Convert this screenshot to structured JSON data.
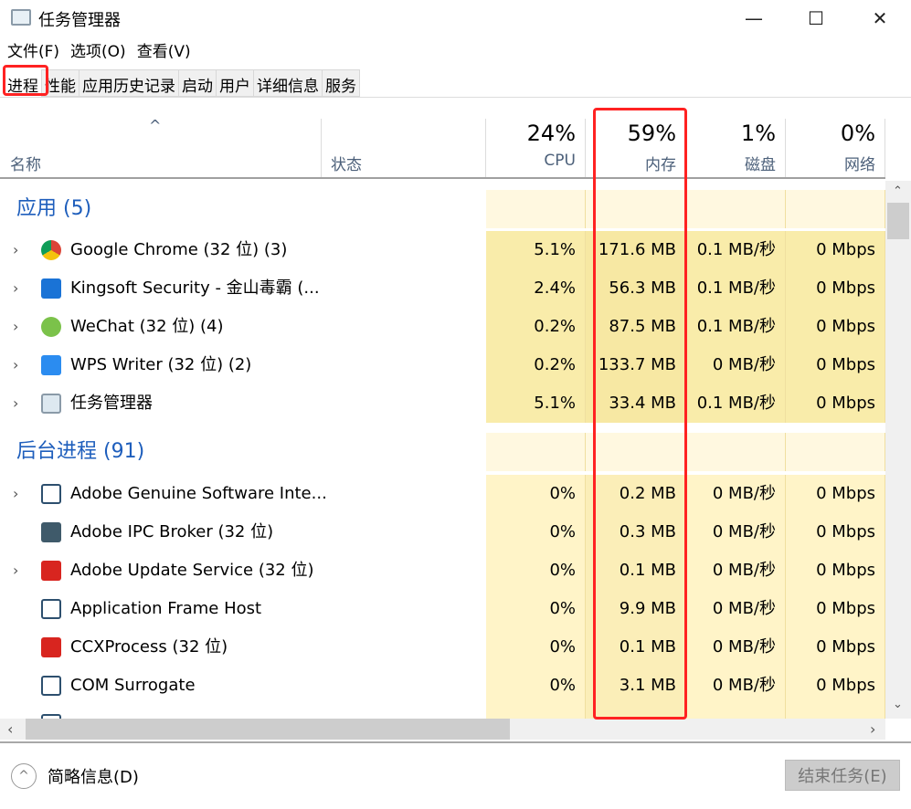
{
  "window": {
    "title": "任务管理器",
    "minimize": "—",
    "maximize": "☐",
    "close": "✕"
  },
  "menu": [
    "文件(F)",
    "选项(O)",
    "查看(V)"
  ],
  "tabs": [
    "进程",
    "性能",
    "应用历史记录",
    "启动",
    "用户",
    "详细信息",
    "服务"
  ],
  "header": {
    "name": "名称",
    "status": "状态",
    "sort": "^",
    "cpu": {
      "pct": "24%",
      "label": "CPU"
    },
    "mem": {
      "pct": "59%",
      "label": "内存"
    },
    "disk": {
      "pct": "1%",
      "label": "磁盘"
    },
    "net": {
      "pct": "0%",
      "label": "网络"
    }
  },
  "groups": {
    "apps": "应用 (5)",
    "background": "后台进程 (91)"
  },
  "apps": [
    {
      "name": "Google Chrome (32 位) (3)",
      "cpu": "5.1%",
      "mem": "171.6 MB",
      "disk": "0.1 MB/秒",
      "net": "0 Mbps",
      "icon": "chrome-icon",
      "expand": true
    },
    {
      "name": "Kingsoft Security - 金山毒霸 (...",
      "cpu": "2.4%",
      "mem": "56.3 MB",
      "disk": "0.1 MB/秒",
      "net": "0 Mbps",
      "icon": "kingsoft-icon",
      "expand": true
    },
    {
      "name": "WeChat (32 位) (4)",
      "cpu": "0.2%",
      "mem": "87.5 MB",
      "disk": "0.1 MB/秒",
      "net": "0 Mbps",
      "icon": "wechat-icon",
      "expand": true
    },
    {
      "name": "WPS Writer (32 位) (2)",
      "cpu": "0.2%",
      "mem": "133.7 MB",
      "disk": "0 MB/秒",
      "net": "0 Mbps",
      "icon": "wps-icon",
      "expand": true
    },
    {
      "name": "任务管理器",
      "cpu": "5.1%",
      "mem": "33.4 MB",
      "disk": "0.1 MB/秒",
      "net": "0 Mbps",
      "icon": "task-manager-icon",
      "expand": true
    }
  ],
  "background": [
    {
      "name": "Adobe Genuine Software Inte...",
      "cpu": "0%",
      "mem": "0.2 MB",
      "disk": "0 MB/秒",
      "net": "0 Mbps",
      "icon": "window-icon",
      "expand": true
    },
    {
      "name": "Adobe IPC Broker (32 位)",
      "cpu": "0%",
      "mem": "0.3 MB",
      "disk": "0 MB/秒",
      "net": "0 Mbps",
      "icon": "adobe-ipc-icon",
      "expand": false
    },
    {
      "name": "Adobe Update Service (32 位)",
      "cpu": "0%",
      "mem": "0.1 MB",
      "disk": "0 MB/秒",
      "net": "0 Mbps",
      "icon": "adobe-cc-icon",
      "expand": true
    },
    {
      "name": "Application Frame Host",
      "cpu": "0%",
      "mem": "9.9 MB",
      "disk": "0 MB/秒",
      "net": "0 Mbps",
      "icon": "window-icon",
      "expand": false
    },
    {
      "name": "CCXProcess (32 位)",
      "cpu": "0%",
      "mem": "0.1 MB",
      "disk": "0 MB/秒",
      "net": "0 Mbps",
      "icon": "adobe-cc-icon",
      "expand": false
    },
    {
      "name": "COM Surrogate",
      "cpu": "0%",
      "mem": "3.1 MB",
      "disk": "0 MB/秒",
      "net": "0 Mbps",
      "icon": "window-icon",
      "expand": false
    }
  ],
  "footer": {
    "fewer_details": "简略信息(D)",
    "end_task": "结束任务(E)"
  },
  "colors": {
    "highlight": "#ff2222",
    "group_text": "#1e5ebc",
    "cell_active": "#f9ecaa",
    "cell_light": "#fff4cc",
    "mem_active": "#f7e8a3"
  }
}
